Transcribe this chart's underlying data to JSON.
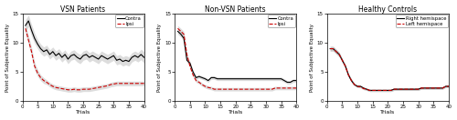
{
  "titles": [
    "VSN Patients",
    "Non-VSN Patients",
    "Healthy Controls"
  ],
  "xlabel": "Trials",
  "ylabel": "Point of Subjective Equality",
  "xlim": [
    0,
    40
  ],
  "ylim": [
    0,
    15
  ],
  "yticks": [
    0,
    5,
    10,
    15
  ],
  "xticks": [
    0,
    5,
    10,
    15,
    20,
    25,
    30,
    35,
    40
  ],
  "legend_labels_vsn": [
    "Contra",
    "Ipsi"
  ],
  "legend_labels_healthy": [
    "Right hemispace",
    "Left hemispace"
  ],
  "contra_color": "#000000",
  "ipsi_color": "#cc0000",
  "shade_color": "#aaaaaa",
  "linewidth": 0.8,
  "shade_alpha": 0.4,
  "vsn_contra": [
    13.0,
    13.8,
    12.2,
    10.8,
    9.8,
    9.0,
    8.5,
    8.8,
    8.0,
    8.5,
    7.8,
    8.2,
    7.5,
    8.0,
    7.2,
    7.8,
    8.0,
    7.5,
    7.2,
    7.8,
    8.0,
    7.5,
    7.8,
    7.5,
    7.2,
    7.8,
    7.5,
    7.2,
    7.5,
    7.8,
    7.0,
    7.2,
    6.8,
    7.0,
    6.8,
    7.5,
    7.8,
    7.5,
    8.0,
    7.5
  ],
  "vsn_contra_se": [
    1.0,
    1.0,
    1.0,
    0.9,
    0.8,
    0.8,
    0.8,
    0.8,
    0.8,
    0.8,
    0.8,
    0.8,
    0.8,
    0.8,
    0.8,
    0.8,
    0.8,
    0.8,
    0.8,
    0.8,
    0.8,
    0.8,
    0.8,
    0.8,
    0.8,
    0.8,
    0.8,
    0.8,
    0.8,
    0.8,
    0.8,
    0.8,
    0.8,
    0.8,
    0.8,
    0.8,
    0.8,
    0.8,
    0.9,
    1.0
  ],
  "vsn_ipsi": [
    12.5,
    10.5,
    8.5,
    6.0,
    4.8,
    4.0,
    3.5,
    3.2,
    2.8,
    2.5,
    2.3,
    2.2,
    2.1,
    2.0,
    1.9,
    1.9,
    2.0,
    1.9,
    1.9,
    2.0,
    2.0,
    2.0,
    2.1,
    2.2,
    2.3,
    2.4,
    2.5,
    2.6,
    2.8,
    2.9,
    3.0,
    3.0,
    3.0,
    3.0,
    3.0,
    3.0,
    3.0,
    3.0,
    3.0,
    3.0
  ],
  "vsn_ipsi_se": [
    0.8,
    0.8,
    0.8,
    0.7,
    0.6,
    0.5,
    0.5,
    0.4,
    0.4,
    0.4,
    0.4,
    0.4,
    0.4,
    0.4,
    0.4,
    0.4,
    0.4,
    0.4,
    0.4,
    0.4,
    0.4,
    0.4,
    0.4,
    0.4,
    0.4,
    0.4,
    0.4,
    0.4,
    0.4,
    0.4,
    0.4,
    0.4,
    0.4,
    0.4,
    0.4,
    0.4,
    0.4,
    0.4,
    0.4,
    0.4
  ],
  "non_vsn_contra": [
    12.0,
    11.5,
    10.8,
    7.0,
    6.5,
    5.0,
    4.0,
    4.2,
    4.0,
    3.8,
    3.5,
    4.0,
    4.0,
    3.8,
    3.8,
    3.8,
    3.8,
    3.8,
    3.8,
    3.8,
    3.8,
    3.8,
    3.8,
    3.8,
    3.8,
    3.8,
    3.8,
    3.8,
    3.8,
    3.8,
    3.8,
    3.8,
    3.8,
    3.8,
    3.8,
    3.5,
    3.2,
    3.2,
    3.5,
    3.5
  ],
  "non_vsn_contra_se": [
    0.5,
    0.5,
    0.5,
    0.4,
    0.4,
    0.3,
    0.3,
    0.3,
    0.3,
    0.3,
    0.3,
    0.3,
    0.3,
    0.3,
    0.3,
    0.3,
    0.3,
    0.3,
    0.3,
    0.3,
    0.3,
    0.3,
    0.3,
    0.3,
    0.3,
    0.3,
    0.3,
    0.3,
    0.3,
    0.3,
    0.3,
    0.3,
    0.3,
    0.3,
    0.3,
    0.3,
    0.3,
    0.3,
    0.3,
    0.3
  ],
  "non_vsn_ipsi": [
    12.5,
    12.0,
    11.5,
    8.0,
    6.0,
    4.5,
    3.5,
    3.2,
    2.8,
    2.5,
    2.3,
    2.2,
    2.0,
    2.0,
    2.0,
    2.0,
    2.0,
    2.0,
    2.0,
    2.0,
    2.0,
    2.0,
    2.0,
    2.0,
    2.0,
    2.0,
    2.0,
    2.0,
    2.0,
    2.0,
    2.0,
    2.0,
    2.2,
    2.2,
    2.2,
    2.2,
    2.2,
    2.2,
    2.2,
    2.2
  ],
  "non_vsn_ipsi_se": [
    0.5,
    0.5,
    0.5,
    0.4,
    0.3,
    0.3,
    0.3,
    0.3,
    0.3,
    0.3,
    0.3,
    0.3,
    0.3,
    0.3,
    0.3,
    0.3,
    0.3,
    0.3,
    0.3,
    0.3,
    0.3,
    0.3,
    0.3,
    0.3,
    0.3,
    0.3,
    0.3,
    0.3,
    0.3,
    0.3,
    0.3,
    0.3,
    0.3,
    0.3,
    0.3,
    0.3,
    0.3,
    0.3,
    0.3,
    0.3
  ],
  "healthy_contra": [
    9.0,
    9.0,
    8.5,
    8.0,
    7.0,
    6.0,
    4.5,
    3.5,
    2.8,
    2.5,
    2.5,
    2.2,
    2.0,
    1.8,
    1.8,
    1.8,
    1.8,
    1.8,
    1.8,
    1.8,
    1.8,
    2.0,
    2.0,
    2.0,
    2.0,
    2.0,
    2.0,
    2.0,
    2.0,
    2.0,
    2.2,
    2.2,
    2.2,
    2.2,
    2.2,
    2.2,
    2.2,
    2.2,
    2.5,
    2.5
  ],
  "healthy_contra_se": [
    0.4,
    0.4,
    0.4,
    0.4,
    0.3,
    0.3,
    0.3,
    0.3,
    0.2,
    0.2,
    0.2,
    0.2,
    0.2,
    0.2,
    0.2,
    0.2,
    0.2,
    0.2,
    0.2,
    0.2,
    0.2,
    0.2,
    0.2,
    0.2,
    0.2,
    0.2,
    0.2,
    0.2,
    0.2,
    0.2,
    0.2,
    0.2,
    0.2,
    0.2,
    0.2,
    0.2,
    0.2,
    0.2,
    0.2,
    0.2
  ],
  "healthy_ipsi": [
    9.0,
    9.0,
    8.5,
    8.0,
    7.0,
    6.0,
    4.5,
    3.5,
    2.8,
    2.5,
    2.4,
    2.1,
    2.0,
    1.8,
    1.8,
    1.8,
    1.8,
    1.8,
    1.8,
    1.8,
    1.8,
    2.0,
    2.0,
    2.0,
    2.0,
    2.0,
    2.0,
    2.0,
    2.0,
    2.0,
    2.2,
    2.2,
    2.2,
    2.2,
    2.2,
    2.2,
    2.2,
    2.2,
    2.5,
    2.5
  ],
  "healthy_ipsi_se": [
    0.4,
    0.4,
    0.4,
    0.4,
    0.3,
    0.3,
    0.3,
    0.3,
    0.2,
    0.2,
    0.2,
    0.2,
    0.2,
    0.2,
    0.2,
    0.2,
    0.2,
    0.2,
    0.2,
    0.2,
    0.2,
    0.2,
    0.2,
    0.2,
    0.2,
    0.2,
    0.2,
    0.2,
    0.2,
    0.2,
    0.2,
    0.2,
    0.2,
    0.2,
    0.2,
    0.2,
    0.2,
    0.2,
    0.2,
    0.2
  ],
  "figsize": [
    5.0,
    1.32
  ],
  "dpi": 100,
  "title_fontsize": 5.5,
  "label_fontsize": 4.5,
  "tick_fontsize": 4.0,
  "legend_fontsize": 3.8
}
